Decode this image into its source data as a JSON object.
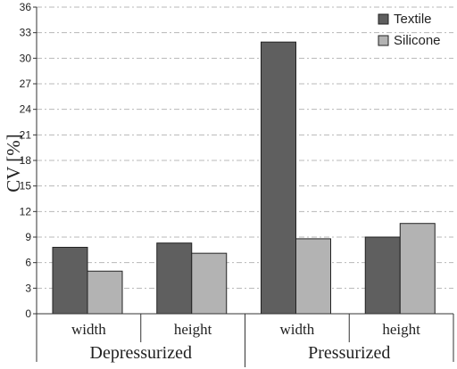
{
  "chart_data": {
    "type": "bar",
    "ylabel": "CV [%]",
    "ylim": [
      0,
      36
    ],
    "yticks": [
      0,
      3,
      6,
      9,
      12,
      15,
      18,
      21,
      24,
      27,
      30,
      33,
      36
    ],
    "grid": true,
    "legend_position": "top-right",
    "groups": [
      {
        "label": "Depressurized",
        "categories": [
          "width",
          "height"
        ]
      },
      {
        "label": "Pressurized",
        "categories": [
          "width",
          "height"
        ]
      }
    ],
    "series": [
      {
        "name": "Textile",
        "color": "#5f5f5f",
        "values": [
          7.8,
          8.3,
          31.9,
          9.0
        ]
      },
      {
        "name": "Silicone",
        "color": "#b3b3b3",
        "values": [
          5.0,
          7.1,
          8.8,
          10.6
        ]
      }
    ]
  }
}
